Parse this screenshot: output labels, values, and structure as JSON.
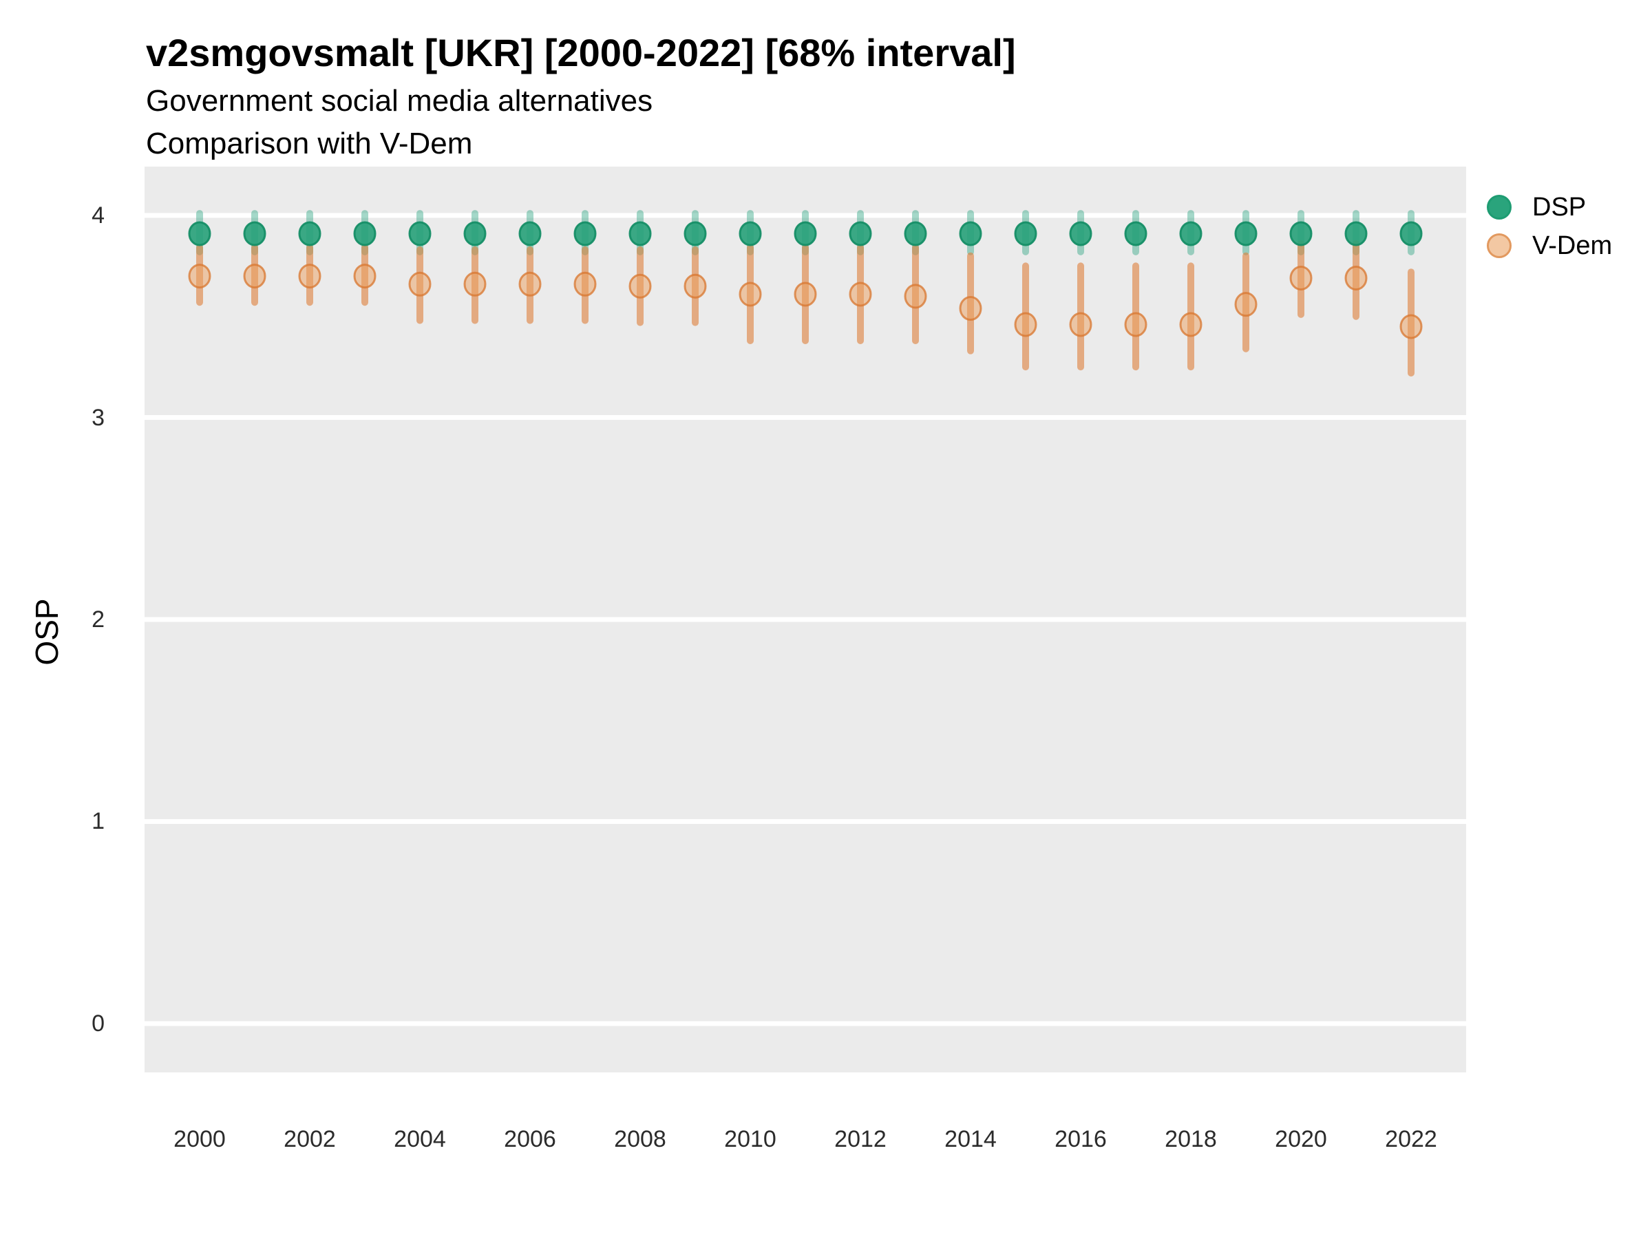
{
  "header": {
    "title": "v2smgovsmalt [UKR] [2000-2022] [68% interval]",
    "subtitle_line1": "Government social media alternatives",
    "subtitle_line2": "Comparison with V-Dem"
  },
  "axes": {
    "ylabel": "OSP",
    "y_tick_labels": [
      "0",
      "1",
      "2",
      "3",
      "4"
    ],
    "x_tick_labels": [
      "2000",
      "2002",
      "2004",
      "2006",
      "2008",
      "2010",
      "2012",
      "2014",
      "2016",
      "2018",
      "2020",
      "2022"
    ]
  },
  "colors": {
    "panel_background": "#EBEBEB",
    "gridline": "#FFFFFF",
    "dsp_point_fill": "#27A179",
    "dsp_point_stroke": "#158E66",
    "dsp_interval": "rgba(27,158,119,0.40)",
    "vdem_point_fill": "rgba(235,160,95,0.50)",
    "vdem_point_stroke": "rgba(216,120,50,0.78)",
    "vdem_interval": "rgba(222,126,58,0.60)"
  },
  "legend": {
    "items": [
      {
        "label": "DSP",
        "swatch_fill": "#2AA47C",
        "swatch_border": "#1E9C72"
      },
      {
        "label": "V-Dem",
        "swatch_fill": "#F3C8A3",
        "swatch_border": "#E2995F"
      }
    ]
  },
  "chart_data": {
    "type": "pointrange",
    "title": "v2smgovsmalt [UKR] [2000-2022] [68% interval]",
    "subtitle": [
      "Government social media alternatives",
      "Comparison with V-Dem"
    ],
    "interval": "68%",
    "xlabel": "",
    "ylabel": "OSP",
    "grid": "major-horizontal-only",
    "legend_position": "right-top",
    "xlim": [
      1999,
      2023
    ],
    "ylim": [
      -0.242,
      4.242
    ],
    "y_ticks": [
      0,
      1,
      2,
      3,
      4
    ],
    "x_ticks": [
      2000,
      2002,
      2004,
      2006,
      2008,
      2010,
      2012,
      2014,
      2016,
      2018,
      2020,
      2022
    ],
    "x": [
      2000,
      2001,
      2002,
      2003,
      2004,
      2005,
      2006,
      2007,
      2008,
      2009,
      2010,
      2011,
      2012,
      2013,
      2014,
      2015,
      2016,
      2017,
      2018,
      2019,
      2020,
      2021,
      2022
    ],
    "series": [
      {
        "name": "DSP",
        "color": "#1B9E77",
        "values": [
          3.91,
          3.91,
          3.91,
          3.91,
          3.91,
          3.91,
          3.91,
          3.91,
          3.91,
          3.91,
          3.91,
          3.91,
          3.91,
          3.91,
          3.91,
          3.91,
          3.91,
          3.91,
          3.91,
          3.91,
          3.91,
          3.91,
          3.91
        ],
        "lo": [
          3.82,
          3.82,
          3.82,
          3.82,
          3.82,
          3.82,
          3.82,
          3.82,
          3.82,
          3.82,
          3.82,
          3.82,
          3.82,
          3.82,
          3.82,
          3.82,
          3.82,
          3.82,
          3.82,
          3.82,
          3.82,
          3.82,
          3.82
        ],
        "hi": [
          4.01,
          4.01,
          4.01,
          4.01,
          4.01,
          4.01,
          4.01,
          4.01,
          4.01,
          4.01,
          4.01,
          4.01,
          4.01,
          4.01,
          4.01,
          4.01,
          4.01,
          4.01,
          4.01,
          4.01,
          4.01,
          4.01,
          4.01
        ]
      },
      {
        "name": "V-Dem",
        "color": "#E08142",
        "values": [
          3.7,
          3.7,
          3.7,
          3.7,
          3.66,
          3.66,
          3.66,
          3.66,
          3.65,
          3.65,
          3.61,
          3.61,
          3.61,
          3.6,
          3.54,
          3.46,
          3.46,
          3.46,
          3.46,
          3.56,
          3.69,
          3.69,
          3.45
        ],
        "lo": [
          3.57,
          3.57,
          3.57,
          3.57,
          3.48,
          3.48,
          3.48,
          3.48,
          3.47,
          3.47,
          3.38,
          3.38,
          3.38,
          3.38,
          3.33,
          3.25,
          3.25,
          3.25,
          3.25,
          3.34,
          3.51,
          3.5,
          3.22
        ],
        "hi": [
          3.84,
          3.84,
          3.84,
          3.84,
          3.83,
          3.83,
          3.83,
          3.83,
          3.83,
          3.83,
          3.84,
          3.84,
          3.84,
          3.84,
          3.8,
          3.75,
          3.75,
          3.75,
          3.75,
          3.8,
          3.86,
          3.86,
          3.72
        ]
      }
    ]
  }
}
